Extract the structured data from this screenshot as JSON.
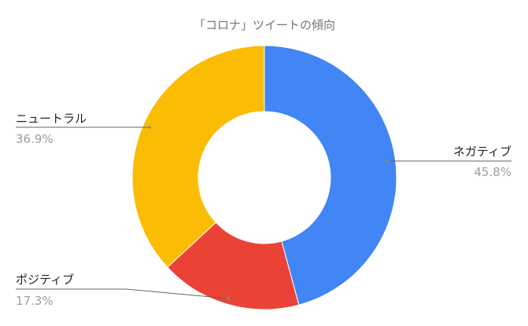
{
  "chart_data": {
    "type": "pie",
    "donut": true,
    "title": "「コロナ」ツイートの傾向",
    "slices": [
      {
        "label": "ネガティブ",
        "value": 45.8,
        "display": "45.8%",
        "color": "#4285f4"
      },
      {
        "label": "ポジティブ",
        "value": 17.3,
        "display": "17.3%",
        "color": "#ea4335"
      },
      {
        "label": "ニュートラル",
        "value": 36.9,
        "display": "36.9%",
        "color": "#fbbc04"
      }
    ],
    "legend": "callout labels"
  }
}
